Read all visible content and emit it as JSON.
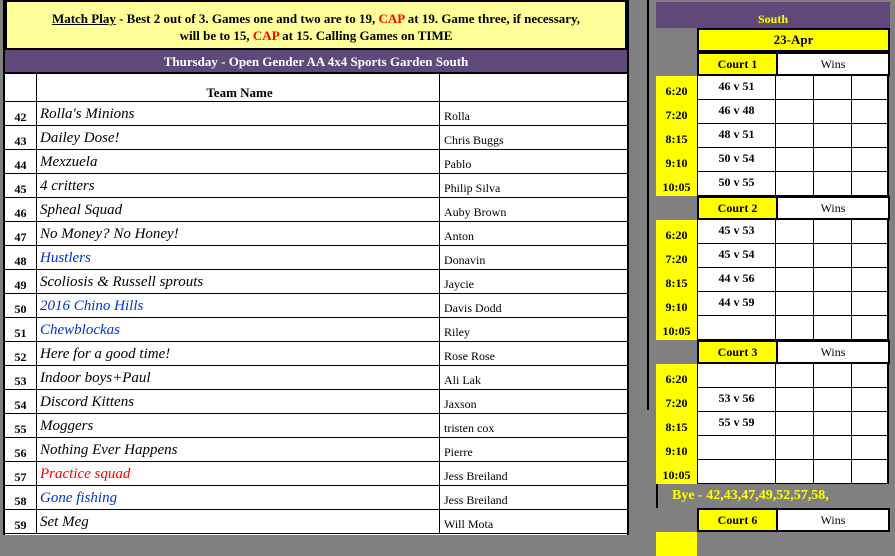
{
  "notice": {
    "match_play": "Match Play",
    "part1": " - Best 2 out of 3.  Games one and two are to 19, ",
    "cap": "CAP",
    "part2": " at 19.  Game three, if necessary,",
    "part3": "will be to 15, ",
    "part4": " at 15. Calling Games on TIME"
  },
  "league_title": "Thursday - Open Gender AA 4x4 Sports Garden South",
  "team_header": "Team Name",
  "teams": [
    {
      "num": "42",
      "name": "Rolla's Minions",
      "captain": "Rolla",
      "color": "#000000"
    },
    {
      "num": "43",
      "name": "Dailey Dose!",
      "captain": "Chris Buggs",
      "color": "#000000"
    },
    {
      "num": "44",
      "name": "Mexzuela",
      "captain": "Pablo",
      "color": "#000000"
    },
    {
      "num": "45",
      "name": "4 critters",
      "captain": "Philip Silva",
      "color": "#000000"
    },
    {
      "num": "46",
      "name": "Spheal Squad",
      "captain": "Auby Brown",
      "color": "#000000"
    },
    {
      "num": "47",
      "name": "No Money? No Honey!",
      "captain": "Anton",
      "color": "#000000"
    },
    {
      "num": "48",
      "name": "Hustlers",
      "captain": "Donavin",
      "color": "#0033cc"
    },
    {
      "num": "49",
      "name": "Scoliosis & Russell sprouts",
      "captain": "Jaycie",
      "color": "#000000"
    },
    {
      "num": "50",
      "name": "2016 Chino Hills",
      "captain": "Davis Dodd",
      "color": "#0033cc"
    },
    {
      "num": "51",
      "name": "Chewblockas",
      "captain": "Riley",
      "color": "#0033cc"
    },
    {
      "num": "52",
      "name": "Here for a good time!",
      "captain": "Rose Rose",
      "color": "#000000"
    },
    {
      "num": "53",
      "name": "Indoor boys+Paul",
      "captain": "Ali Lak",
      "color": "#000000"
    },
    {
      "num": "54",
      "name": "Discord Kittens",
      "captain": "Jaxson",
      "color": "#000000"
    },
    {
      "num": "55",
      "name": "Moggers",
      "captain": "tristen cox",
      "color": "#000000"
    },
    {
      "num": "56",
      "name": "Nothing Ever Happens",
      "captain": "Pierre",
      "color": "#000000"
    },
    {
      "num": "57",
      "name": "Practice squad",
      "captain": "Jess Breiland",
      "color": "#ff0000"
    },
    {
      "num": "58",
      "name": "Gone fishing",
      "captain": "Jess Breiland",
      "color": "#0033cc"
    },
    {
      "num": "59",
      "name": "Set Meg",
      "captain": "Will Mota",
      "color": "#000000"
    }
  ],
  "schedule": {
    "location": "South",
    "date": "23-Apr",
    "wins_label": "Wins",
    "courts": [
      {
        "name": "Court 1",
        "games": [
          {
            "time": "6:20",
            "match": "46 v 51"
          },
          {
            "time": "7:20",
            "match": "46 v 48"
          },
          {
            "time": "8:15",
            "match": "48 v 51"
          },
          {
            "time": "9:10",
            "match": "50 v 54"
          },
          {
            "time": "10:05",
            "match": "50 v 55"
          }
        ]
      },
      {
        "name": "Court 2",
        "games": [
          {
            "time": "6:20",
            "match": "45 v 53"
          },
          {
            "time": "7:20",
            "match": "45 v 54"
          },
          {
            "time": "8:15",
            "match": "44 v 56"
          },
          {
            "time": "9:10",
            "match": "44 v 59"
          },
          {
            "time": "10:05",
            "match": ""
          }
        ]
      },
      {
        "name": "Court 3",
        "games": [
          {
            "time": "6:20",
            "match": ""
          },
          {
            "time": "7:20",
            "match": "53 v 56"
          },
          {
            "time": "8:15",
            "match": "55 v 59"
          },
          {
            "time": "9:10",
            "match": ""
          },
          {
            "time": "10:05",
            "match": ""
          }
        ]
      }
    ],
    "bye": "Bye - 42,43,47,49,52,57,58,",
    "court6": "Court 6"
  }
}
